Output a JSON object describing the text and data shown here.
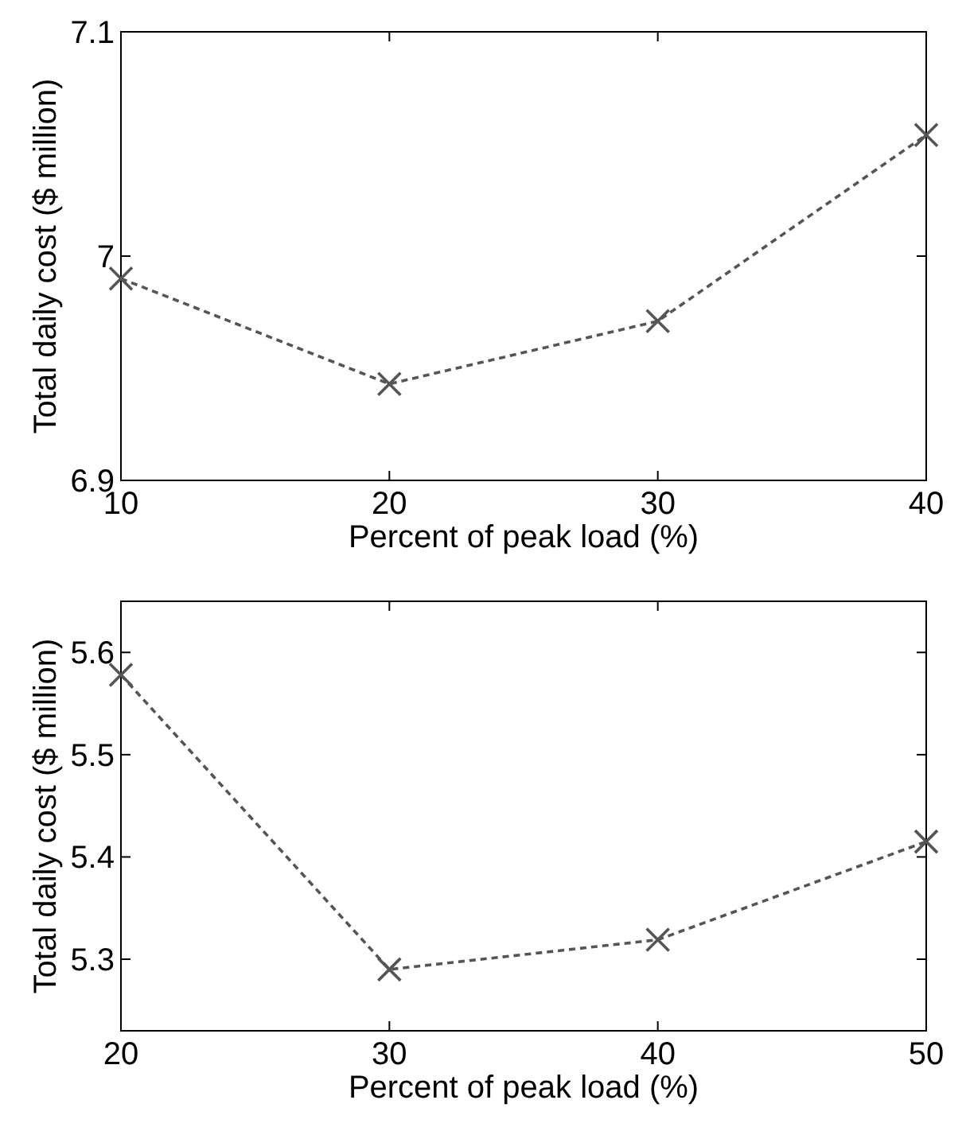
{
  "chart_data": [
    {
      "type": "line",
      "x": [
        10,
        20,
        30,
        40
      ],
      "xlabel": "Percent of peak load (%)",
      "ylabel": "Total daily cost ($ million)",
      "xlim": [
        10,
        40
      ],
      "xticks": [
        10,
        20,
        30,
        40
      ],
      "ylim": [
        6.9,
        7.1
      ],
      "yticks": [
        6.9,
        7,
        7.1
      ],
      "marker": "cross",
      "line_style": "dashed",
      "grid": false,
      "series": [
        {
          "color": "#555555",
          "values": [
            6.99,
            6.943,
            6.971,
            7.054
          ]
        }
      ]
    },
    {
      "type": "line",
      "x": [
        20,
        30,
        40,
        50
      ],
      "xlabel": "Percent of peak load (%)",
      "ylabel": "Total daily cost ($ million)",
      "xlim": [
        20,
        50
      ],
      "xticks": [
        20,
        30,
        40,
        50
      ],
      "ylim": [
        5.23,
        5.65
      ],
      "yticks": [
        5.3,
        5.4,
        5.5,
        5.6
      ],
      "marker": "cross",
      "line_style": "dashed",
      "grid": false,
      "series": [
        {
          "color": "#555555",
          "values": [
            5.578,
            5.29,
            5.319,
            5.415
          ]
        }
      ]
    }
  ]
}
